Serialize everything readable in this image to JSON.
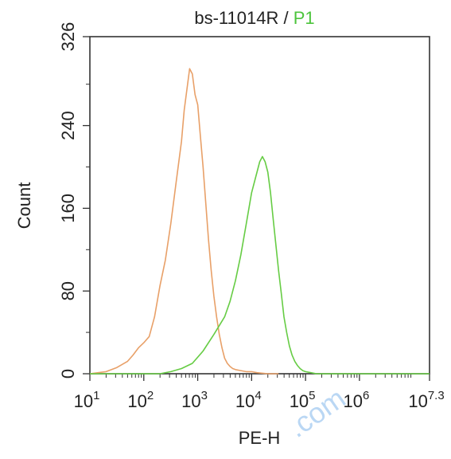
{
  "chart_data": {
    "type": "line",
    "title_parts": [
      "bs-11014R",
      " / ",
      "P1"
    ],
    "xlabel": "PE-H",
    "ylabel": "Count",
    "x_scale": "log10",
    "xlim": [
      1,
      7.3
    ],
    "ylim": [
      0,
      326
    ],
    "x_ticks": [
      {
        "value": 1,
        "base": "10",
        "exp": "1"
      },
      {
        "value": 2,
        "base": "10",
        "exp": "2"
      },
      {
        "value": 3,
        "base": "10",
        "exp": "3"
      },
      {
        "value": 4,
        "base": "10",
        "exp": "4"
      },
      {
        "value": 5,
        "base": "10",
        "exp": "5"
      },
      {
        "value": 6,
        "base": "10",
        "exp": "6"
      },
      {
        "value": 7.3,
        "base": "10",
        "exp": "7.3"
      }
    ],
    "y_ticks": [
      "0",
      "80",
      "160",
      "240",
      "326"
    ],
    "grid": false,
    "watermark": ".com",
    "series": [
      {
        "color": "#e8a068",
        "x": [
          1.0,
          1.3,
          1.5,
          1.7,
          1.8,
          1.9,
          2.0,
          2.1,
          2.2,
          2.3,
          2.4,
          2.5,
          2.6,
          2.7,
          2.75,
          2.8,
          2.85,
          2.9,
          2.95,
          3.0,
          3.05,
          3.1,
          3.15,
          3.2,
          3.25,
          3.3,
          3.35,
          3.4,
          3.45,
          3.5,
          3.55,
          3.6,
          3.65,
          3.7,
          3.8,
          3.9,
          4.0,
          4.1,
          4.3,
          4.5
        ],
        "y": [
          0,
          2,
          6,
          12,
          18,
          25,
          30,
          36,
          55,
          85,
          110,
          145,
          185,
          225,
          255,
          275,
          295,
          290,
          270,
          260,
          230,
          200,
          165,
          130,
          100,
          75,
          55,
          38,
          25,
          15,
          10,
          7,
          5,
          4,
          3,
          2,
          2,
          1,
          0,
          0
        ]
      },
      {
        "color": "#66cc44",
        "x": [
          1.0,
          2.3,
          2.5,
          2.7,
          2.9,
          3.1,
          3.3,
          3.5,
          3.6,
          3.7,
          3.8,
          3.9,
          4.0,
          4.1,
          4.15,
          4.2,
          4.25,
          4.3,
          4.35,
          4.4,
          4.45,
          4.5,
          4.55,
          4.6,
          4.65,
          4.7,
          4.75,
          4.8,
          4.85,
          4.9,
          4.95,
          5.0,
          5.1,
          5.2,
          5.4,
          5.6,
          7.3
        ],
        "y": [
          0,
          0,
          2,
          5,
          10,
          22,
          38,
          55,
          70,
          90,
          115,
          145,
          175,
          195,
          205,
          210,
          205,
          195,
          175,
          150,
          125,
          100,
          78,
          55,
          40,
          27,
          18,
          12,
          8,
          5,
          3,
          2,
          1,
          0,
          0,
          0,
          0
        ]
      }
    ]
  }
}
